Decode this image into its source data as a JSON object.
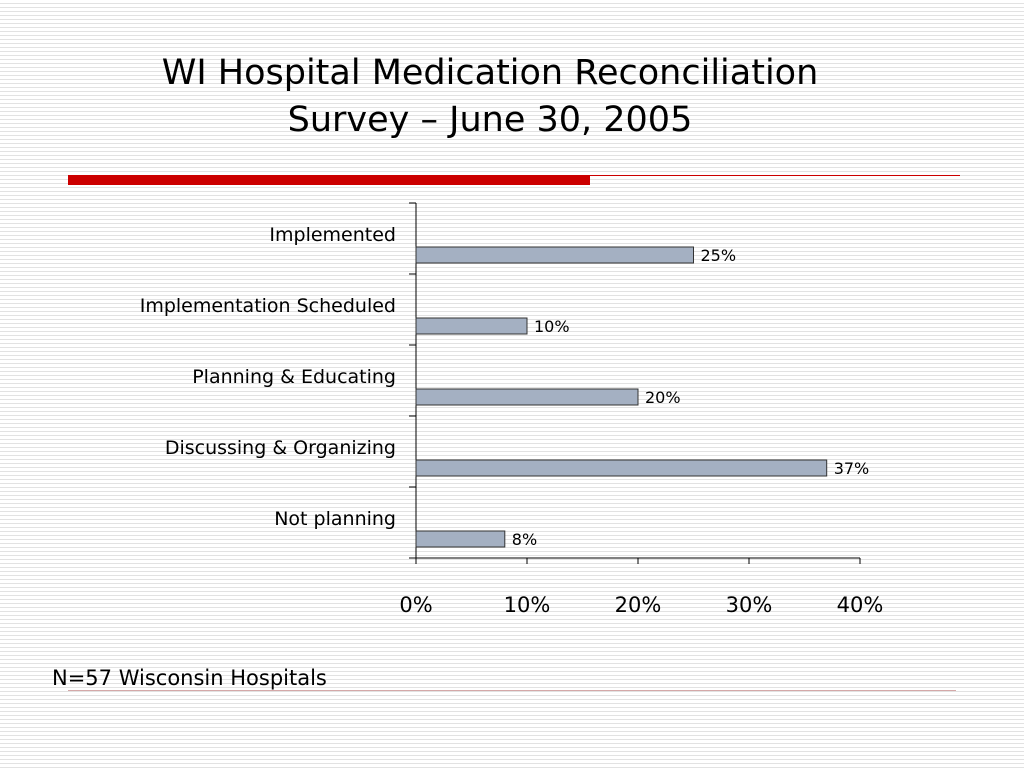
{
  "slide": {
    "title_line1": "WI Hospital Medication Reconciliation",
    "title_line2": "Survey – June 30, 2005",
    "footnote": "N=57 Wisconsin Hospitals",
    "accent_color": "#cc0000"
  },
  "chart_data": {
    "type": "bar",
    "orientation": "horizontal",
    "categories": [
      "Implemented",
      "Implementation Scheduled",
      "Planning & Educating",
      "Discussing & Organizing",
      "Not planning"
    ],
    "values": [
      25,
      10,
      20,
      37,
      8
    ],
    "data_labels": [
      "25%",
      "10%",
      "20%",
      "37%",
      "8%"
    ],
    "xlim": [
      0,
      40
    ],
    "x_ticks": [
      0,
      10,
      20,
      30,
      40
    ],
    "x_tick_labels": [
      "0%",
      "10%",
      "20%",
      "30%",
      "40%"
    ],
    "bar_color": "#a4b0c2",
    "bar_border": "#333333",
    "grid": false,
    "legend": "none"
  }
}
